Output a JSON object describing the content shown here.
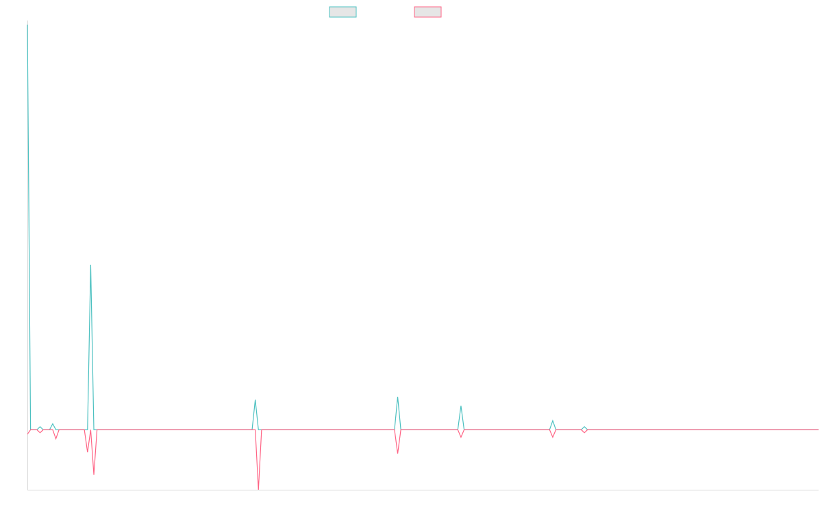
{
  "colors": {
    "series_a": "#4bc0c0",
    "series_b": "#ff6384",
    "axis": "#d9d9d9",
    "legend_fill": "#e6e6e6"
  },
  "chart_data": {
    "type": "line",
    "title": "",
    "xlabel": "",
    "ylabel": "",
    "grid": false,
    "legend": {
      "position": "top-center",
      "labels": [
        "",
        ""
      ]
    },
    "n_points": 251,
    "ylim": [
      -20,
      135
    ],
    "x_ticks_shown": false,
    "y_ticks_shown": false,
    "series": [
      {
        "color": "#4bc0c0",
        "points": [
          [
            0,
            135
          ],
          [
            1,
            0
          ],
          [
            3,
            0
          ],
          [
            4,
            1
          ],
          [
            5,
            0
          ],
          [
            7,
            0
          ],
          [
            8,
            2
          ],
          [
            9,
            0
          ],
          [
            19,
            0
          ],
          [
            20,
            55
          ],
          [
            21,
            0
          ],
          [
            25,
            0
          ],
          [
            26,
            0
          ],
          [
            34,
            0
          ],
          [
            35,
            0
          ],
          [
            71,
            0
          ],
          [
            72,
            10
          ],
          [
            73,
            0
          ],
          [
            116,
            0
          ],
          [
            117,
            11
          ],
          [
            118,
            0
          ],
          [
            125,
            0
          ],
          [
            126,
            0
          ],
          [
            127,
            0
          ],
          [
            136,
            0
          ],
          [
            137,
            8
          ],
          [
            138,
            0
          ],
          [
            165,
            0
          ],
          [
            166,
            3
          ],
          [
            167,
            0
          ],
          [
            175,
            0
          ],
          [
            176,
            1
          ],
          [
            177,
            0
          ],
          [
            250,
            0
          ]
        ]
      },
      {
        "color": "#ff6384",
        "points": [
          [
            0,
            -1.5
          ],
          [
            1,
            0
          ],
          [
            3,
            0
          ],
          [
            4,
            -1
          ],
          [
            5,
            0
          ],
          [
            8,
            0
          ],
          [
            9,
            -3
          ],
          [
            10,
            0
          ],
          [
            14,
            0
          ],
          [
            18,
            0
          ],
          [
            19,
            -7.5
          ],
          [
            20,
            0
          ],
          [
            21,
            -15
          ],
          [
            22,
            0
          ],
          [
            25,
            0
          ],
          [
            34,
            0
          ],
          [
            72,
            0
          ],
          [
            73,
            -20
          ],
          [
            74,
            0
          ],
          [
            116,
            0
          ],
          [
            117,
            -8
          ],
          [
            118,
            0
          ],
          [
            125,
            0
          ],
          [
            126,
            0
          ],
          [
            136,
            0
          ],
          [
            137,
            -2.5
          ],
          [
            138,
            0
          ],
          [
            165,
            0
          ],
          [
            166,
            -2.5
          ],
          [
            167,
            0
          ],
          [
            175,
            0
          ],
          [
            176,
            -1
          ],
          [
            177,
            0
          ],
          [
            250,
            0
          ]
        ]
      }
    ]
  }
}
